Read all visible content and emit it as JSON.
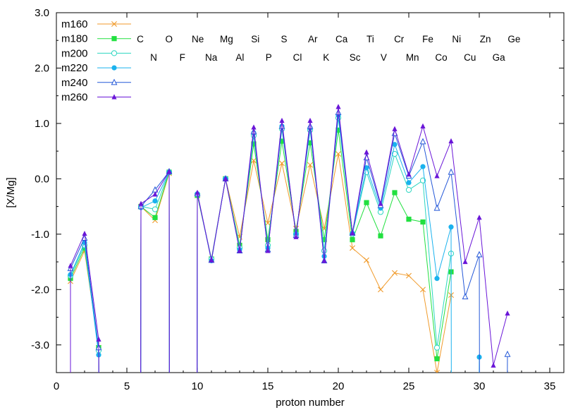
{
  "chart_data": {
    "type": "line",
    "title": "",
    "xlabel": "proton number",
    "ylabel": "[X/Mg]",
    "xlim": [
      0,
      36
    ],
    "ylim": [
      -3.5,
      3.0
    ],
    "xticks": [
      0,
      5,
      10,
      15,
      20,
      25,
      30,
      35
    ],
    "xtick_labels": [
      "0",
      "5",
      "10",
      "15",
      "20",
      "25",
      "30",
      "35"
    ],
    "yticks": [
      -3.0,
      -2.0,
      -1.0,
      0.0,
      1.0,
      2.0,
      3.0
    ],
    "ytick_labels": [
      "-3.0",
      "-2.0",
      "-1.0",
      "0.0",
      "1.0",
      "2.0",
      "3.0"
    ],
    "grid": false,
    "legend_position": "top-left",
    "element_labels_upper": [
      "C",
      "O",
      "Ne",
      "Mg",
      "Si",
      "S",
      "Ar",
      "Ca",
      "Ti",
      "Cr",
      "Fe",
      "Ni",
      "Zn",
      "Ge"
    ],
    "element_labels_lower": [
      "N",
      "F",
      "Na",
      "Al",
      "P",
      "Cl",
      "K",
      "Sc",
      "V",
      "Mn",
      "Co",
      "Cu",
      "Ga"
    ],
    "series": [
      {
        "name": "m160",
        "color": "#f09a2a",
        "marker": "x",
        "points": [
          [
            1,
            -1.85
          ],
          [
            2,
            -1.3
          ],
          [
            3,
            -3.05
          ],
          [
            6,
            -0.5
          ],
          [
            7,
            -0.75
          ],
          [
            8,
            0.1
          ],
          [
            10,
            -0.3
          ],
          [
            11,
            -1.45
          ],
          [
            12,
            0.0
          ],
          [
            13,
            -1.05
          ],
          [
            14,
            0.33
          ],
          [
            15,
            -0.8
          ],
          [
            16,
            0.28
          ],
          [
            17,
            -0.9
          ],
          [
            18,
            0.25
          ],
          [
            19,
            -0.9
          ],
          [
            20,
            0.45
          ],
          [
            21,
            -1.25
          ],
          [
            22,
            -1.47
          ],
          [
            23,
            -2.0
          ],
          [
            24,
            -1.7
          ],
          [
            25,
            -1.75
          ],
          [
            26,
            -2.0
          ],
          [
            27,
            -3.5
          ],
          [
            28,
            -2.1
          ]
        ]
      },
      {
        "name": "m180",
        "color": "#22e040",
        "marker": "filled-square",
        "points": [
          [
            1,
            -1.8
          ],
          [
            2,
            -1.25
          ],
          [
            3,
            -3.05
          ],
          [
            6,
            -0.5
          ],
          [
            7,
            -0.7
          ],
          [
            8,
            0.12
          ],
          [
            10,
            -0.3
          ],
          [
            11,
            -1.45
          ],
          [
            12,
            0.0
          ],
          [
            13,
            -1.2
          ],
          [
            14,
            0.63
          ],
          [
            15,
            -1.1
          ],
          [
            16,
            0.68
          ],
          [
            17,
            -0.95
          ],
          [
            18,
            0.65
          ],
          [
            19,
            -1.1
          ],
          [
            20,
            0.88
          ],
          [
            21,
            -1.1
          ],
          [
            22,
            -0.43
          ],
          [
            23,
            -1.03
          ],
          [
            24,
            -0.25
          ],
          [
            25,
            -0.73
          ],
          [
            26,
            -0.78
          ],
          [
            27,
            -3.25
          ],
          [
            28,
            -1.68
          ]
        ]
      },
      {
        "name": "m200",
        "color": "#2bd6c0",
        "marker": "open-circle",
        "points": [
          [
            1,
            -1.75
          ],
          [
            2,
            -1.2
          ],
          [
            3,
            -3.1
          ],
          [
            6,
            -0.5
          ],
          [
            7,
            -0.55
          ],
          [
            8,
            0.12
          ],
          [
            10,
            -0.28
          ],
          [
            11,
            -1.45
          ],
          [
            12,
            0.0
          ],
          [
            13,
            -1.25
          ],
          [
            14,
            0.78
          ],
          [
            15,
            -1.2
          ],
          [
            16,
            0.9
          ],
          [
            17,
            -1.0
          ],
          [
            18,
            0.88
          ],
          [
            19,
            -1.3
          ],
          [
            20,
            1.1
          ],
          [
            21,
            -1.0
          ],
          [
            22,
            0.12
          ],
          [
            23,
            -0.6
          ],
          [
            24,
            0.45
          ],
          [
            25,
            -0.2
          ],
          [
            26,
            -0.03
          ],
          [
            27,
            -3.05
          ],
          [
            28,
            -1.35
          ]
        ]
      },
      {
        "name": "m220",
        "color": "#1ab2ee",
        "marker": "filled-circle",
        "points": [
          [
            1,
            -1.73
          ],
          [
            2,
            -1.15
          ],
          [
            3,
            -3.18
          ],
          [
            6,
            -0.52
          ],
          [
            7,
            -0.4
          ],
          [
            8,
            0.12
          ],
          [
            10,
            -0.27
          ],
          [
            11,
            -1.48
          ],
          [
            12,
            0.0
          ],
          [
            13,
            -1.28
          ],
          [
            14,
            0.83
          ],
          [
            15,
            -1.25
          ],
          [
            16,
            0.95
          ],
          [
            17,
            -1.0
          ],
          [
            18,
            0.92
          ],
          [
            19,
            -1.4
          ],
          [
            20,
            1.15
          ],
          [
            21,
            -0.98
          ],
          [
            22,
            0.2
          ],
          [
            23,
            -0.53
          ],
          [
            24,
            0.62
          ],
          [
            25,
            -0.07
          ],
          [
            26,
            0.22
          ],
          [
            27,
            -1.8
          ],
          [
            28,
            -0.87
          ],
          [
            30,
            -3.22
          ]
        ]
      },
      {
        "name": "m240",
        "color": "#2458d8",
        "marker": "open-triangle",
        "points": [
          [
            1,
            -1.62
          ],
          [
            2,
            -1.07
          ],
          [
            3,
            -3.05
          ],
          [
            6,
            -0.5
          ],
          [
            7,
            -0.2
          ],
          [
            8,
            0.13
          ],
          [
            10,
            -0.27
          ],
          [
            11,
            -1.47
          ],
          [
            12,
            0.0
          ],
          [
            13,
            -1.3
          ],
          [
            14,
            0.85
          ],
          [
            15,
            -1.28
          ],
          [
            16,
            0.95
          ],
          [
            17,
            -1.02
          ],
          [
            18,
            0.95
          ],
          [
            19,
            -1.48
          ],
          [
            20,
            1.2
          ],
          [
            21,
            -0.98
          ],
          [
            22,
            0.38
          ],
          [
            23,
            -0.48
          ],
          [
            24,
            0.82
          ],
          [
            25,
            0.05
          ],
          [
            26,
            0.67
          ],
          [
            27,
            -0.53
          ],
          [
            28,
            0.12
          ],
          [
            29,
            -2.13
          ],
          [
            30,
            -1.37
          ],
          [
            32,
            -3.17
          ]
        ]
      },
      {
        "name": "m260",
        "color": "#6a16d8",
        "marker": "filled-triangle",
        "points": [
          [
            1,
            -1.57
          ],
          [
            2,
            -0.99
          ],
          [
            3,
            -2.9
          ],
          [
            6,
            -0.45
          ],
          [
            7,
            -0.28
          ],
          [
            8,
            0.13
          ],
          [
            10,
            -0.25
          ],
          [
            11,
            -1.47
          ],
          [
            12,
            0.0
          ],
          [
            13,
            -1.3
          ],
          [
            14,
            0.93
          ],
          [
            15,
            -1.3
          ],
          [
            16,
            1.05
          ],
          [
            17,
            -1.05
          ],
          [
            18,
            1.05
          ],
          [
            19,
            -1.48
          ],
          [
            20,
            1.3
          ],
          [
            21,
            -0.98
          ],
          [
            22,
            0.48
          ],
          [
            23,
            -0.45
          ],
          [
            24,
            0.9
          ],
          [
            25,
            0.08
          ],
          [
            26,
            0.95
          ],
          [
            27,
            0.05
          ],
          [
            28,
            0.68
          ],
          [
            29,
            -1.5
          ],
          [
            30,
            -0.7
          ],
          [
            31,
            -3.37
          ],
          [
            32,
            -2.43
          ]
        ]
      }
    ]
  }
}
